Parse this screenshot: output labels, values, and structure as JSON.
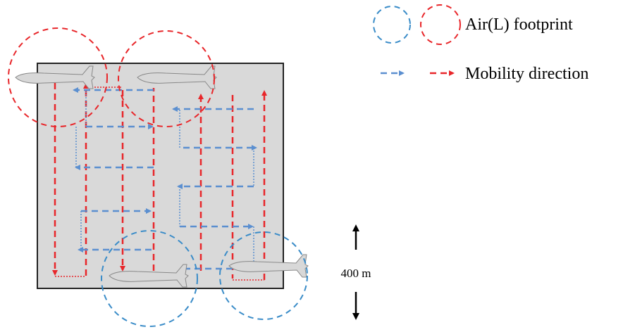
{
  "legend": {
    "footprint": "Air(L) footprint",
    "mobility": "Mobility direction"
  },
  "scale": {
    "label": "400 m"
  }
}
